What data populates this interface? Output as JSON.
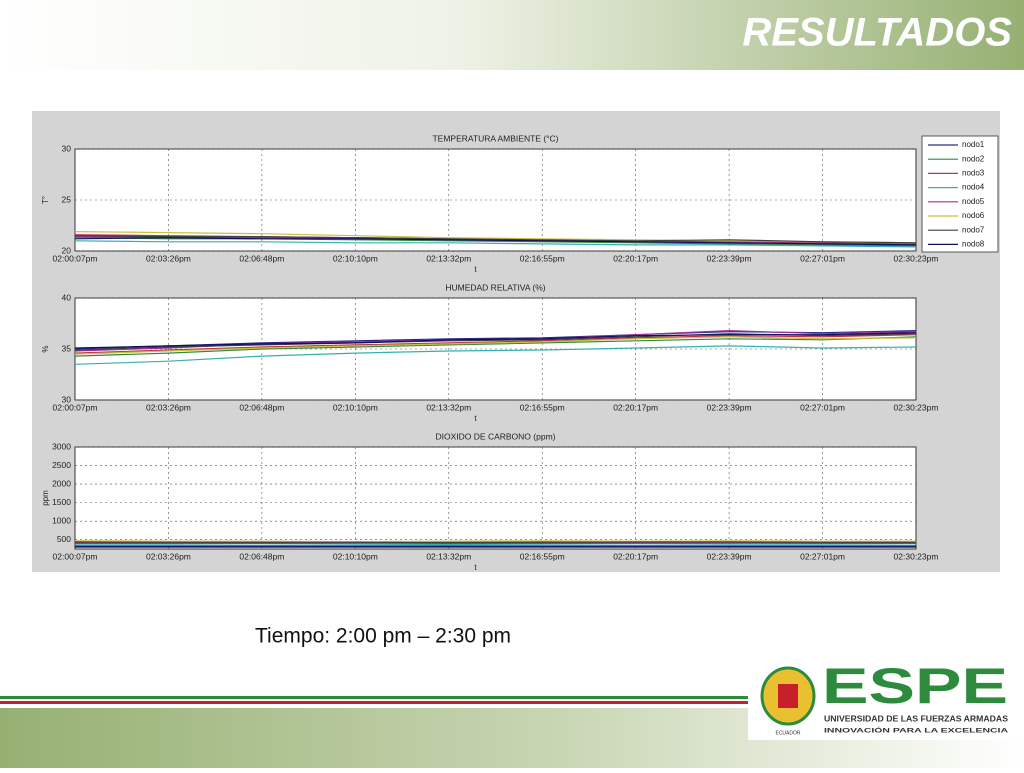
{
  "slide": {
    "title": "RESULTADOS",
    "caption": "Tiempo: 2:00 pm – 2:30 pm",
    "logo": {
      "name": "ESPE",
      "line1": "UNIVERSIDAD DE LAS FUERZAS ARMADAS",
      "line2": "INNOVACIÓN PARA LA EXCELENCIA",
      "emblem": "ECUADOR"
    }
  },
  "chart_data": [
    {
      "type": "line",
      "title": "TEMPERATURA AMBIENTE (°C)",
      "x_label": "t",
      "y_label": "T°",
      "categories": [
        "02:00:07pm",
        "02:03:26pm",
        "02:06:48pm",
        "02:10:10pm",
        "02:13:32pm",
        "02:16:55pm",
        "02:20:17pm",
        "02:23:39pm",
        "02:27:01pm",
        "02:30:23pm"
      ],
      "ylim": [
        20,
        30
      ],
      "yticks": [
        20,
        25,
        30
      ],
      "grid": true,
      "legend": "upper right",
      "series": [
        {
          "name": "nodo1",
          "color": "#2a2a90",
          "values": [
            21.5,
            21.4,
            21.3,
            21.3,
            21.1,
            21.0,
            20.9,
            20.9,
            20.8,
            20.6
          ]
        },
        {
          "name": "nodo2",
          "color": "#2e8b3e",
          "values": [
            21.3,
            21.2,
            21.2,
            21.1,
            21.0,
            20.9,
            20.8,
            20.7,
            20.6,
            20.5
          ]
        },
        {
          "name": "nodo3",
          "color": "#c0304a",
          "values": [
            21.6,
            21.5,
            21.4,
            21.3,
            21.2,
            21.0,
            21.0,
            20.9,
            20.8,
            20.7
          ]
        },
        {
          "name": "nodo4",
          "color": "#35b0b0",
          "values": [
            21.0,
            20.9,
            20.9,
            20.8,
            20.8,
            20.7,
            20.6,
            20.6,
            20.5,
            20.4
          ]
        },
        {
          "name": "nodo5",
          "color": "#a0309a",
          "values": [
            21.4,
            21.3,
            21.3,
            21.2,
            21.1,
            21.0,
            20.9,
            20.8,
            20.8,
            20.6
          ]
        },
        {
          "name": "nodo6",
          "color": "#c8c040",
          "values": [
            21.9,
            21.8,
            21.7,
            21.5,
            21.3,
            21.2,
            21.1,
            21.0,
            20.9,
            20.8
          ]
        },
        {
          "name": "nodo7",
          "color": "#404040",
          "values": [
            21.5,
            21.4,
            21.4,
            21.3,
            21.2,
            21.1,
            21.0,
            21.1,
            20.9,
            20.8
          ]
        },
        {
          "name": "nodo8",
          "color": "#101060",
          "values": [
            21.2,
            21.3,
            21.2,
            21.2,
            21.1,
            21.0,
            20.9,
            20.8,
            20.7,
            20.6
          ]
        }
      ]
    },
    {
      "type": "line",
      "title": "HUMEDAD RELATIVA (%)",
      "x_label": "t",
      "y_label": "%",
      "categories": [
        "02:00:07pm",
        "02:03:26pm",
        "02:06:48pm",
        "02:10:10pm",
        "02:13:32pm",
        "02:16:55pm",
        "02:20:17pm",
        "02:23:39pm",
        "02:27:01pm",
        "02:30:23pm"
      ],
      "ylim": [
        30,
        40
      ],
      "yticks": [
        30,
        35,
        40
      ],
      "grid": true,
      "series": [
        {
          "color": "#2a2a90",
          "values": [
            35.0,
            35.3,
            35.6,
            35.8,
            36.0,
            36.1,
            36.4,
            36.7,
            36.6,
            36.8
          ]
        },
        {
          "color": "#2e8b3e",
          "values": [
            34.3,
            34.6,
            35.0,
            35.2,
            35.4,
            35.6,
            35.8,
            36.0,
            35.9,
            36.2
          ]
        },
        {
          "color": "#c0304a",
          "values": [
            34.6,
            34.9,
            35.2,
            35.4,
            35.6,
            35.8,
            36.1,
            36.3,
            36.2,
            36.4
          ]
        },
        {
          "color": "#35b0b0",
          "values": [
            33.5,
            33.8,
            34.3,
            34.6,
            34.8,
            34.9,
            35.1,
            35.3,
            35.1,
            35.2
          ]
        },
        {
          "color": "#a0309a",
          "values": [
            34.8,
            35.1,
            35.5,
            35.7,
            35.9,
            36.0,
            36.4,
            36.8,
            36.5,
            36.7
          ]
        },
        {
          "color": "#c8c040",
          "values": [
            34.5,
            34.8,
            35.1,
            35.3,
            35.5,
            35.7,
            36.0,
            36.2,
            36.0,
            36.1
          ]
        },
        {
          "color": "#404040",
          "values": [
            34.9,
            35.2,
            35.4,
            35.6,
            35.8,
            35.9,
            36.2,
            36.5,
            36.3,
            36.5
          ]
        },
        {
          "color": "#101060",
          "values": [
            35.1,
            35.3,
            35.5,
            35.6,
            35.9,
            36.0,
            36.3,
            36.4,
            36.4,
            36.6
          ]
        }
      ]
    },
    {
      "type": "line",
      "title": "DIOXIDO DE CARBONO (ppm)",
      "x_label": "t",
      "y_label": "ppm",
      "categories": [
        "02:00:07pm",
        "02:03:26pm",
        "02:06:48pm",
        "02:10:10pm",
        "02:13:32pm",
        "02:16:55pm",
        "02:20:17pm",
        "02:23:39pm",
        "02:27:01pm",
        "02:30:23pm"
      ],
      "ylim": [
        250,
        3000
      ],
      "yticks": [
        500,
        1000,
        1500,
        2000,
        2500,
        3000
      ],
      "grid": true,
      "series": [
        {
          "color": "#2a2a90",
          "values": [
            300,
            300,
            300,
            300,
            300,
            300,
            300,
            300,
            300,
            300
          ]
        },
        {
          "color": "#2e8b3e",
          "values": [
            450,
            440,
            440,
            430,
            440,
            450,
            440,
            450,
            430,
            440
          ]
        },
        {
          "color": "#c0304a",
          "values": [
            420,
            420,
            410,
            420,
            410,
            420,
            430,
            420,
            410,
            420
          ]
        },
        {
          "color": "#35b0b0",
          "values": [
            380,
            380,
            390,
            380,
            370,
            380,
            390,
            380,
            380,
            390
          ]
        },
        {
          "color": "#a0309a",
          "values": [
            400,
            400,
            400,
            410,
            400,
            400,
            410,
            410,
            400,
            400
          ]
        },
        {
          "color": "#c8c040",
          "values": [
            470,
            460,
            460,
            450,
            460,
            470,
            460,
            470,
            460,
            460
          ]
        },
        {
          "color": "#404040",
          "values": [
            440,
            430,
            430,
            430,
            420,
            430,
            440,
            440,
            430,
            430
          ]
        },
        {
          "color": "#101060",
          "values": [
            330,
            330,
            330,
            330,
            330,
            330,
            330,
            330,
            330,
            330
          ]
        }
      ]
    }
  ]
}
